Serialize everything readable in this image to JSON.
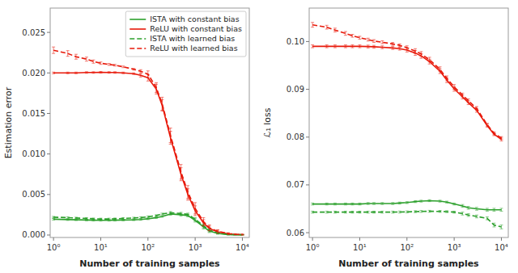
{
  "chart_data": [
    {
      "type": "line",
      "xlabel": "Number of training samples",
      "ylabel": "Estimation error",
      "log": "x",
      "grid": false,
      "legend": "upper right",
      "xlim": [
        0.85,
        14000
      ],
      "xticks": [
        {
          "value": 1,
          "label": "10⁰"
        },
        {
          "value": 10,
          "label": "10¹"
        },
        {
          "value": 100,
          "label": "10²"
        },
        {
          "value": 1000,
          "label": "10³"
        },
        {
          "value": 10000,
          "label": "10⁴"
        }
      ],
      "ylim": [
        -0.0003,
        0.028
      ],
      "yticks": [
        {
          "value": 0.0,
          "label": "0.000"
        },
        0.005,
        {
          "value": 0.01,
          "label": "0.010"
        },
        0.015,
        {
          "value": 0.02,
          "label": "0.020"
        },
        0.025
      ],
      "x": [
        1,
        2,
        3,
        5,
        7,
        10,
        15,
        20,
        30,
        50,
        70,
        100,
        150,
        200,
        300,
        500,
        700,
        1000,
        1500,
        2000,
        3000,
        5000,
        7000,
        10000
      ],
      "series": [
        {
          "name": "ISTA with constant bias",
          "color": "#2ca02c",
          "line_style": "solid",
          "values": [
            0.00195,
            0.0019,
            0.00188,
            0.00185,
            0.00183,
            0.00182,
            0.00182,
            0.00183,
            0.00185,
            0.00188,
            0.00192,
            0.002,
            0.00215,
            0.0023,
            0.0026,
            0.0025,
            0.0024,
            0.0018,
            0.001,
            0.0005,
            0.0002,
            5e-05,
            3e-05,
            2e-05
          ],
          "errors": [
            0.0001,
            0.0001,
            0.0001,
            0.0001,
            0.0001,
            0.0001,
            0.0001,
            0.0001,
            0.0001,
            0.0001,
            0.0001,
            0.0001,
            0.0001,
            0.0001,
            0.00015,
            0.00015,
            0.00015,
            0.0002,
            0.00025,
            0.0002,
            0.0001,
            5e-05,
            3e-05,
            2e-05
          ]
        },
        {
          "name": "ReLU with constant bias",
          "color": "#e8190a",
          "line_style": "solid",
          "values": [
            0.02,
            0.02,
            0.02,
            0.02005,
            0.02005,
            0.02008,
            0.02006,
            0.02005,
            0.02,
            0.0199,
            0.0197,
            0.0194,
            0.018,
            0.016,
            0.012,
            0.0075,
            0.005,
            0.003,
            0.0015,
            0.0008,
            0.0004,
            0.00015,
            8e-05,
            5e-05
          ],
          "errors": [
            0.0001,
            0.0001,
            0.0001,
            0.0001,
            0.0001,
            0.0001,
            0.0001,
            0.0001,
            0.0001,
            0.0001,
            0.0002,
            0.0004,
            0.0006,
            0.0007,
            0.0008,
            0.0008,
            0.0007,
            0.0006,
            0.0004,
            0.0003,
            0.0002,
            0.0001,
            5e-05,
            5e-05
          ]
        },
        {
          "name": "ISTA with learned bias",
          "color": "#2ca02c",
          "line_style": "dashed",
          "values": [
            0.0022,
            0.00215,
            0.0021,
            0.00205,
            0.002,
            0.00198,
            0.00198,
            0.002,
            0.00205,
            0.0021,
            0.00215,
            0.00225,
            0.0024,
            0.0026,
            0.00275,
            0.00265,
            0.00255,
            0.00195,
            0.00115,
            0.0006,
            0.00025,
            8e-05,
            5e-05,
            3e-05
          ],
          "errors": [
            0.0001,
            0.0001,
            0.0001,
            0.0001,
            0.0001,
            0.0001,
            0.0001,
            0.0001,
            0.0001,
            0.0001,
            0.0001,
            0.0001,
            0.0001,
            0.0001,
            0.00015,
            0.00015,
            0.00015,
            0.0002,
            0.00025,
            0.0002,
            0.0001,
            5e-05,
            3e-05,
            2e-05
          ]
        },
        {
          "name": "ReLU with learned bias",
          "color": "#e8190a",
          "line_style": "dashed",
          "values": [
            0.0228,
            0.0224,
            0.022,
            0.0217,
            0.0214,
            0.0212,
            0.02105,
            0.02095,
            0.02075,
            0.02045,
            0.0202,
            0.01985,
            0.0182,
            0.0162,
            0.0123,
            0.0078,
            0.0053,
            0.0033,
            0.00165,
            0.0009,
            0.00045,
            0.00018,
            0.0001,
            6e-05
          ],
          "errors": [
            0.0004,
            0.00035,
            0.0003,
            0.00025,
            0.0002,
            0.00015,
            0.00012,
            0.0001,
            0.0001,
            0.0001,
            0.0002,
            0.0004,
            0.0006,
            0.0008,
            0.0009,
            0.0009,
            0.0008,
            0.0007,
            0.0005,
            0.00035,
            0.0002,
            0.0001,
            5e-05,
            5e-05
          ]
        }
      ]
    },
    {
      "type": "line",
      "xlabel": "Number of training samples",
      "ylabel": "ℒ₁ loss",
      "log": "x",
      "grid": false,
      "xlim": [
        0.85,
        14000
      ],
      "xticks": [
        {
          "value": 1,
          "label": "10⁰"
        },
        {
          "value": 10,
          "label": "10¹"
        },
        {
          "value": 100,
          "label": "10²"
        },
        {
          "value": 1000,
          "label": "10³"
        },
        {
          "value": 10000,
          "label": "10⁴"
        }
      ],
      "ylim": [
        0.059,
        0.107
      ],
      "yticks": [
        0.06,
        0.07,
        0.08,
        0.09,
        {
          "value": 0.1,
          "label": "0.10"
        }
      ],
      "x": [
        1,
        2,
        3,
        5,
        7,
        10,
        15,
        20,
        30,
        50,
        70,
        100,
        150,
        200,
        300,
        500,
        700,
        1000,
        1500,
        2000,
        3000,
        5000,
        7000,
        10000
      ],
      "series": [
        {
          "color": "#2ca02c",
          "line_style": "solid",
          "values": [
            0.066,
            0.066,
            0.066,
            0.066,
            0.066,
            0.066,
            0.0661,
            0.0661,
            0.0661,
            0.0661,
            0.0662,
            0.0663,
            0.0665,
            0.0666,
            0.0667,
            0.0666,
            0.0664,
            0.066,
            0.0656,
            0.0652,
            0.065,
            0.0648,
            0.0648,
            0.0648
          ],
          "errors": [
            0.0002,
            0.0002,
            0.0002,
            0.0002,
            0.0002,
            0.0002,
            0.0002,
            0.0002,
            0.0002,
            0.0002,
            0.0002,
            0.0002,
            0.0002,
            0.0002,
            0.0002,
            0.0002,
            0.0002,
            0.0002,
            0.0003,
            0.0003,
            0.0003,
            0.0003,
            0.0003,
            0.0003
          ]
        },
        {
          "color": "#e8190a",
          "line_style": "solid",
          "values": [
            0.099,
            0.099,
            0.099,
            0.099,
            0.099,
            0.099,
            0.09895,
            0.0989,
            0.0988,
            0.09865,
            0.0985,
            0.0982,
            0.0976,
            0.097,
            0.0958,
            0.0938,
            0.0919,
            0.0901,
            0.0884,
            0.0872,
            0.0856,
            0.0824,
            0.0806,
            0.0795
          ],
          "errors": [
            0.0003,
            0.0003,
            0.0003,
            0.0003,
            0.0003,
            0.0003,
            0.0003,
            0.0003,
            0.0003,
            0.0003,
            0.0003,
            0.0004,
            0.0005,
            0.0005,
            0.0005,
            0.0005,
            0.0005,
            0.0005,
            0.0004,
            0.0004,
            0.0004,
            0.0003,
            0.0003,
            0.0003
          ]
        },
        {
          "color": "#2ca02c",
          "line_style": "dashed",
          "values": [
            0.0643,
            0.0643,
            0.0643,
            0.0643,
            0.0643,
            0.0643,
            0.0643,
            0.0643,
            0.0643,
            0.0643,
            0.06432,
            0.06435,
            0.0644,
            0.06445,
            0.06448,
            0.06445,
            0.0644,
            0.0643,
            0.064,
            0.0637,
            0.0634,
            0.063,
            0.0616,
            0.0612
          ],
          "errors": [
            0.0002,
            0.0002,
            0.0002,
            0.0002,
            0.0002,
            0.0002,
            0.0002,
            0.0002,
            0.0002,
            0.0002,
            0.0002,
            0.0002,
            0.0002,
            0.0002,
            0.0002,
            0.0002,
            0.0002,
            0.0002,
            0.0003,
            0.0003,
            0.0003,
            0.0003,
            0.0004,
            0.0004
          ]
        },
        {
          "color": "#e8190a",
          "line_style": "dashed",
          "values": [
            0.1035,
            0.103,
            0.1024,
            0.1017,
            0.1012,
            0.1008,
            0.1004,
            0.1001,
            0.09985,
            0.0995,
            0.0992,
            0.0987,
            0.098,
            0.0974,
            0.0962,
            0.0942,
            0.0923,
            0.0905,
            0.0888,
            0.0876,
            0.086,
            0.0826,
            0.0808,
            0.0798
          ],
          "errors": [
            0.0005,
            0.0004,
            0.0004,
            0.0004,
            0.0003,
            0.0003,
            0.0003,
            0.0003,
            0.0003,
            0.0003,
            0.0003,
            0.0004,
            0.0005,
            0.0005,
            0.0005,
            0.0005,
            0.0005,
            0.0005,
            0.0004,
            0.0004,
            0.0004,
            0.0003,
            0.0003,
            0.0003
          ]
        }
      ]
    }
  ]
}
